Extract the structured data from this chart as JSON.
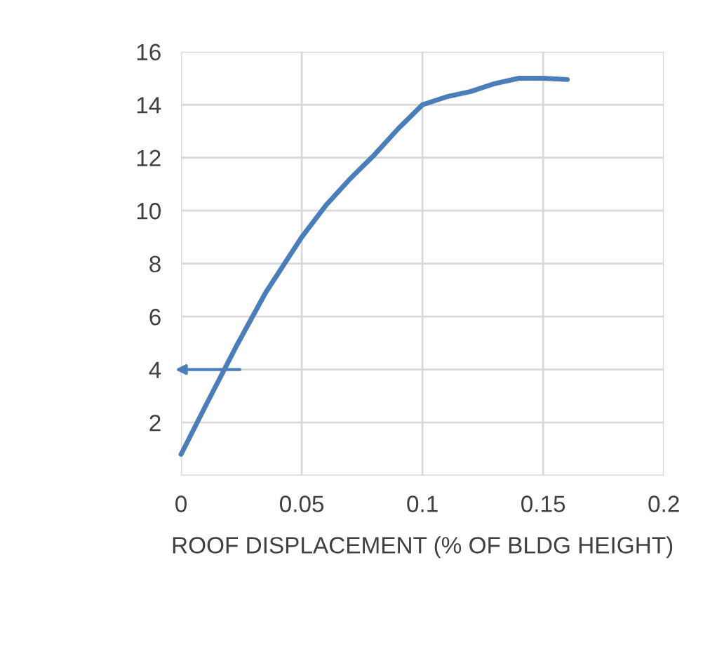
{
  "chart_data": {
    "type": "line",
    "xlabel": "ROOF DISPLACEMENT (% OF BLDG HEIGHT)",
    "x": [
      0,
      0.01,
      0.023,
      0.035,
      0.05,
      0.06,
      0.07,
      0.08,
      0.09,
      0.1,
      0.11,
      0.12,
      0.13,
      0.14,
      0.15,
      0.16
    ],
    "series": [
      {
        "color": "#4a7ebb",
        "values": [
          0.8,
          2.6,
          4.9,
          6.9,
          9.0,
          10.2,
          11.2,
          12.1,
          13.1,
          14.0,
          14.3,
          14.5,
          14.8,
          15.0,
          15.0,
          14.95
        ]
      }
    ],
    "xlim": [
      0,
      0.2
    ],
    "xticks": [
      0,
      0.05,
      0.1,
      0.15,
      0.2
    ],
    "ylim": [
      0,
      16
    ],
    "yticks": [
      {
        "value": 0,
        "label": null
      },
      2,
      4,
      6,
      8,
      10,
      12,
      14,
      16
    ],
    "grid": true,
    "marker": "none",
    "line_style": "solid"
  }
}
